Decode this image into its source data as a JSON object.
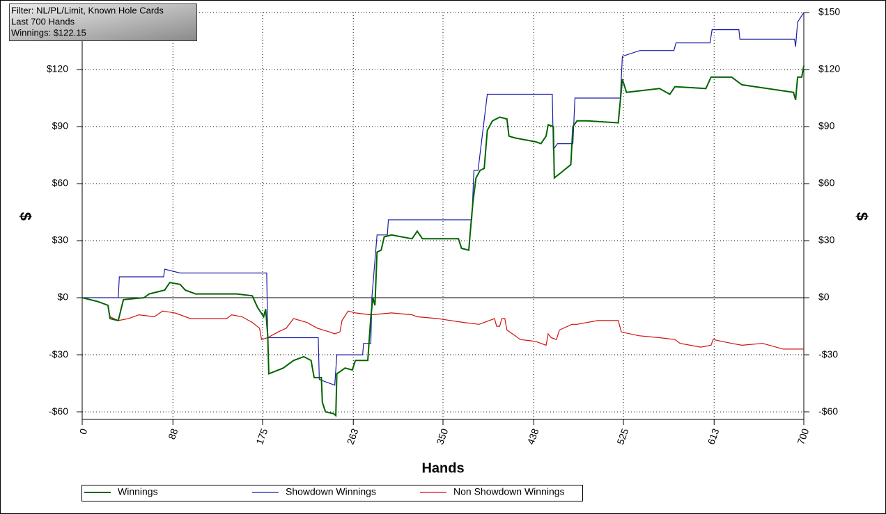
{
  "chart_data": {
    "type": "line",
    "info_box": [
      "Filter: NL/PL/Limit, Known Hole Cards",
      "Last  700 Hands",
      "Winnings: $122.15"
    ],
    "x_label": "Hands",
    "y_label": "$",
    "xlim": [
      0,
      700
    ],
    "xticks": [
      0,
      88,
      175,
      263,
      350,
      438,
      525,
      613,
      700
    ],
    "ylim": [
      -64,
      150
    ],
    "yticks": [
      {
        "value": -60,
        "label": "-$60"
      },
      {
        "value": -30,
        "label": "-$30"
      },
      {
        "value": 0,
        "label": "$0"
      },
      {
        "value": 30,
        "label": "$30"
      },
      {
        "value": 60,
        "label": "$60"
      },
      {
        "value": 90,
        "label": "$90"
      },
      {
        "value": 120,
        "label": "$120"
      },
      {
        "value": 150,
        "label": "$150"
      }
    ],
    "grid": true,
    "series": [
      {
        "name": "Winnings",
        "color": "#006400",
        "x": [
          0,
          15,
          25,
          27,
          35,
          40,
          60,
          65,
          80,
          85,
          95,
          100,
          110,
          150,
          165,
          170,
          176,
          178,
          180,
          181,
          195,
          205,
          215,
          222,
          225,
          232,
          233,
          236,
          244,
          246,
          247,
          255,
          262,
          265,
          277,
          280,
          282,
          284,
          286,
          290,
          293,
          300,
          320,
          325,
          330,
          365,
          368,
          375,
          377,
          379,
          382,
          386,
          390,
          393,
          398,
          405,
          412,
          414,
          420,
          440,
          445,
          450,
          452,
          457,
          458,
          465,
          474,
          476,
          480,
          490,
          520,
          524,
          528,
          560,
          570,
          575,
          605,
          610,
          630,
          640,
          690,
          692,
          694,
          698,
          700
        ],
        "values": [
          0,
          -2,
          -4,
          -11,
          -12,
          -1,
          0,
          2,
          4,
          8,
          7,
          4,
          2,
          2,
          1,
          -5,
          -10,
          -6,
          -20,
          -40,
          -37,
          -33,
          -31,
          -33,
          -42,
          -42,
          -55,
          -60,
          -61,
          -62,
          -40,
          -37,
          -38,
          -33,
          -33,
          -10,
          0,
          -4,
          24,
          25,
          32,
          33,
          31,
          35,
          31,
          31,
          26,
          25,
          38,
          50,
          63,
          67,
          68,
          88,
          93,
          95,
          94,
          85,
          84,
          82,
          81,
          85,
          91,
          90,
          63,
          66,
          70,
          90,
          93,
          93,
          92,
          115,
          108,
          110,
          107,
          111,
          110,
          116,
          116,
          112,
          108,
          104,
          116,
          116,
          122
        ]
      },
      {
        "name": "Showdown Winnings",
        "color": "#1c1ca8",
        "x": [
          0,
          35,
          36,
          79,
          80,
          95,
          179,
          180,
          229,
          230,
          245,
          247,
          272,
          273,
          280,
          281,
          286,
          296,
          297,
          378,
          380,
          384,
          393,
          456,
          457,
          461,
          476,
          478,
          522,
          524,
          541,
          574,
          576,
          609,
          611,
          637,
          638,
          691,
          692,
          694,
          700
        ],
        "values": [
          0,
          0,
          11,
          11,
          15,
          13,
          13,
          -21,
          -21,
          -43,
          -46,
          -30,
          -30,
          -24,
          -24,
          0,
          33,
          33,
          41,
          41,
          67,
          67,
          107,
          107,
          78,
          81,
          81,
          105,
          105,
          127,
          130,
          130,
          134,
          134,
          141,
          141,
          136,
          136,
          132,
          145,
          150
        ]
      },
      {
        "name": "Non Showdown Winnings",
        "color": "#d01010",
        "x": [
          0,
          15,
          25,
          27,
          35,
          45,
          55,
          70,
          78,
          90,
          105,
          140,
          145,
          155,
          165,
          172,
          174,
          180,
          190,
          198,
          205,
          218,
          228,
          240,
          245,
          250,
          252,
          258,
          265,
          280,
          300,
          320,
          325,
          345,
          370,
          385,
          390,
          400,
          402,
          405,
          407,
          410,
          412,
          420,
          425,
          440,
          450,
          452,
          455,
          460,
          463,
          475,
          480,
          500,
          520,
          523,
          540,
          560,
          575,
          580,
          600,
          610,
          612,
          630,
          640,
          660,
          680,
          700
        ],
        "values": [
          0,
          -2,
          -4,
          -10,
          -12,
          -11,
          -9,
          -10,
          -7,
          -8,
          -11,
          -11,
          -9,
          -10,
          -13,
          -16,
          -22,
          -21,
          -18,
          -16,
          -11,
          -13,
          -16,
          -18,
          -19,
          -18,
          -12,
          -7,
          -8,
          -9,
          -8,
          -9,
          -10,
          -11,
          -13,
          -14,
          -13,
          -11,
          -15,
          -15,
          -11,
          -11,
          -17,
          -20,
          -22,
          -23,
          -25,
          -19,
          -21,
          -22,
          -17,
          -14,
          -14,
          -12,
          -12,
          -18,
          -20,
          -21,
          -22,
          -24,
          -26,
          -25,
          -22,
          -24,
          -25,
          -24,
          -27,
          -27
        ]
      }
    ]
  }
}
